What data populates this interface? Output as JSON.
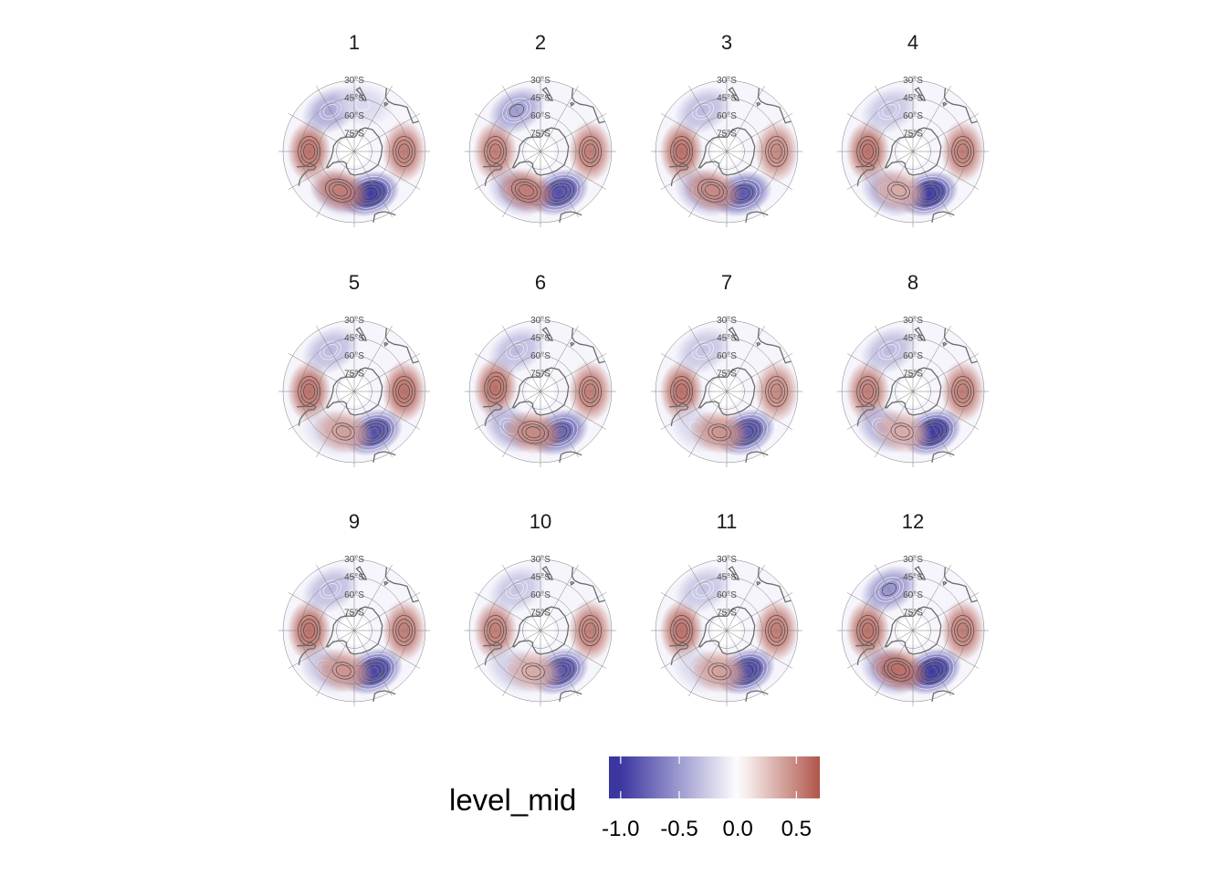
{
  "chart_data": {
    "type": "polar_stereographic_map_facets",
    "facets": [
      "1",
      "2",
      "3",
      "4",
      "5",
      "6",
      "7",
      "8",
      "9",
      "10",
      "11",
      "12"
    ],
    "latitude_labels": [
      "30°S",
      "45°S",
      "60°S",
      "75°S"
    ],
    "legend": {
      "title": "level_mid",
      "ticks": [
        -1.0,
        -0.5,
        0.0,
        0.5
      ],
      "tick_labels": [
        "-1.0",
        "-0.5",
        "0.0",
        "0.5"
      ],
      "range": [
        -1.1,
        0.7
      ],
      "low_color": "#3b36a0",
      "mid_color": "#ffffff",
      "high_color": "#b0554a"
    },
    "anomaly_centers_per_facet": [
      [
        {
          "lon": -90,
          "lat": -52,
          "v": 0.6
        },
        {
          "lon": -150,
          "lat": -50,
          "v": -0.45
        },
        {
          "lon": 90,
          "lat": -48,
          "v": 0.55
        },
        {
          "lon": -20,
          "lat": -52,
          "v": -0.35
        },
        {
          "lon": 20,
          "lat": -52,
          "v": -1.0
        },
        {
          "lon": -20,
          "lat": -55,
          "v": 0.55
        },
        {
          "lon": 170,
          "lat": -50,
          "v": -0.2
        }
      ],
      [
        {
          "lon": -90,
          "lat": -52,
          "v": 0.55
        },
        {
          "lon": -150,
          "lat": -50,
          "v": -0.5
        },
        {
          "lon": 90,
          "lat": -48,
          "v": 0.55
        },
        {
          "lon": -30,
          "lat": -50,
          "v": -0.4
        },
        {
          "lon": 25,
          "lat": -52,
          "v": -0.9
        },
        {
          "lon": -20,
          "lat": -55,
          "v": 0.55
        }
      ],
      [
        {
          "lon": -90,
          "lat": -52,
          "v": 0.6
        },
        {
          "lon": -150,
          "lat": -50,
          "v": -0.35
        },
        {
          "lon": 90,
          "lat": -48,
          "v": 0.5
        },
        {
          "lon": -30,
          "lat": -50,
          "v": -0.4
        },
        {
          "lon": 20,
          "lat": -52,
          "v": -0.85
        },
        {
          "lon": -20,
          "lat": -55,
          "v": 0.5
        }
      ],
      [
        {
          "lon": -90,
          "lat": -52,
          "v": 0.6
        },
        {
          "lon": -150,
          "lat": -50,
          "v": -0.3
        },
        {
          "lon": 90,
          "lat": -48,
          "v": 0.55
        },
        {
          "lon": -30,
          "lat": -50,
          "v": -0.45
        },
        {
          "lon": 20,
          "lat": -52,
          "v": -1.05
        },
        {
          "lon": -20,
          "lat": -55,
          "v": 0.35
        }
      ],
      [
        {
          "lon": -90,
          "lat": -52,
          "v": 0.6
        },
        {
          "lon": -150,
          "lat": -50,
          "v": -0.35
        },
        {
          "lon": 90,
          "lat": -48,
          "v": 0.6
        },
        {
          "lon": -30,
          "lat": -50,
          "v": -0.2
        },
        {
          "lon": 25,
          "lat": -52,
          "v": -0.9
        },
        {
          "lon": -15,
          "lat": -55,
          "v": 0.4
        }
      ],
      [
        {
          "lon": -95,
          "lat": -52,
          "v": 0.6
        },
        {
          "lon": -150,
          "lat": -50,
          "v": -0.35
        },
        {
          "lon": 90,
          "lat": -48,
          "v": 0.55
        },
        {
          "lon": -40,
          "lat": -50,
          "v": -0.4
        },
        {
          "lon": 25,
          "lat": -52,
          "v": -0.8
        },
        {
          "lon": -10,
          "lat": -55,
          "v": 0.5
        }
      ],
      [
        {
          "lon": -90,
          "lat": -52,
          "v": 0.6
        },
        {
          "lon": -150,
          "lat": -50,
          "v": -0.3
        },
        {
          "lon": 90,
          "lat": -48,
          "v": 0.5
        },
        {
          "lon": -40,
          "lat": -50,
          "v": -0.2
        },
        {
          "lon": 25,
          "lat": -52,
          "v": -0.9
        },
        {
          "lon": -10,
          "lat": -55,
          "v": 0.45
        }
      ],
      [
        {
          "lon": -90,
          "lat": -52,
          "v": 0.55
        },
        {
          "lon": -150,
          "lat": -50,
          "v": -0.35
        },
        {
          "lon": 90,
          "lat": -48,
          "v": 0.55
        },
        {
          "lon": -40,
          "lat": -50,
          "v": -0.4
        },
        {
          "lon": 25,
          "lat": -52,
          "v": -1.0
        },
        {
          "lon": -15,
          "lat": -55,
          "v": 0.35
        }
      ],
      [
        {
          "lon": -90,
          "lat": -52,
          "v": 0.6
        },
        {
          "lon": -150,
          "lat": -50,
          "v": -0.35
        },
        {
          "lon": 90,
          "lat": -48,
          "v": 0.55
        },
        {
          "lon": -35,
          "lat": -50,
          "v": -0.3
        },
        {
          "lon": 25,
          "lat": -52,
          "v": -0.95
        },
        {
          "lon": -15,
          "lat": -55,
          "v": 0.45
        }
      ],
      [
        {
          "lon": -90,
          "lat": -52,
          "v": 0.55
        },
        {
          "lon": -150,
          "lat": -50,
          "v": -0.3
        },
        {
          "lon": 90,
          "lat": -48,
          "v": 0.55
        },
        {
          "lon": -35,
          "lat": -50,
          "v": -0.25
        },
        {
          "lon": 25,
          "lat": -52,
          "v": -0.9
        },
        {
          "lon": -10,
          "lat": -55,
          "v": 0.35
        }
      ],
      [
        {
          "lon": -90,
          "lat": -52,
          "v": 0.6
        },
        {
          "lon": -150,
          "lat": -50,
          "v": -0.3
        },
        {
          "lon": 90,
          "lat": -48,
          "v": 0.55
        },
        {
          "lon": -35,
          "lat": -50,
          "v": -0.2
        },
        {
          "lon": 25,
          "lat": -52,
          "v": -0.95
        },
        {
          "lon": -10,
          "lat": -55,
          "v": 0.4
        }
      ],
      [
        {
          "lon": -90,
          "lat": -52,
          "v": 0.6
        },
        {
          "lon": -150,
          "lat": -50,
          "v": -0.55
        },
        {
          "lon": 90,
          "lat": -48,
          "v": 0.55
        },
        {
          "lon": -30,
          "lat": -50,
          "v": -0.5
        },
        {
          "lon": 25,
          "lat": -52,
          "v": -1.0
        },
        {
          "lon": -20,
          "lat": -55,
          "v": 0.6
        }
      ]
    ]
  }
}
